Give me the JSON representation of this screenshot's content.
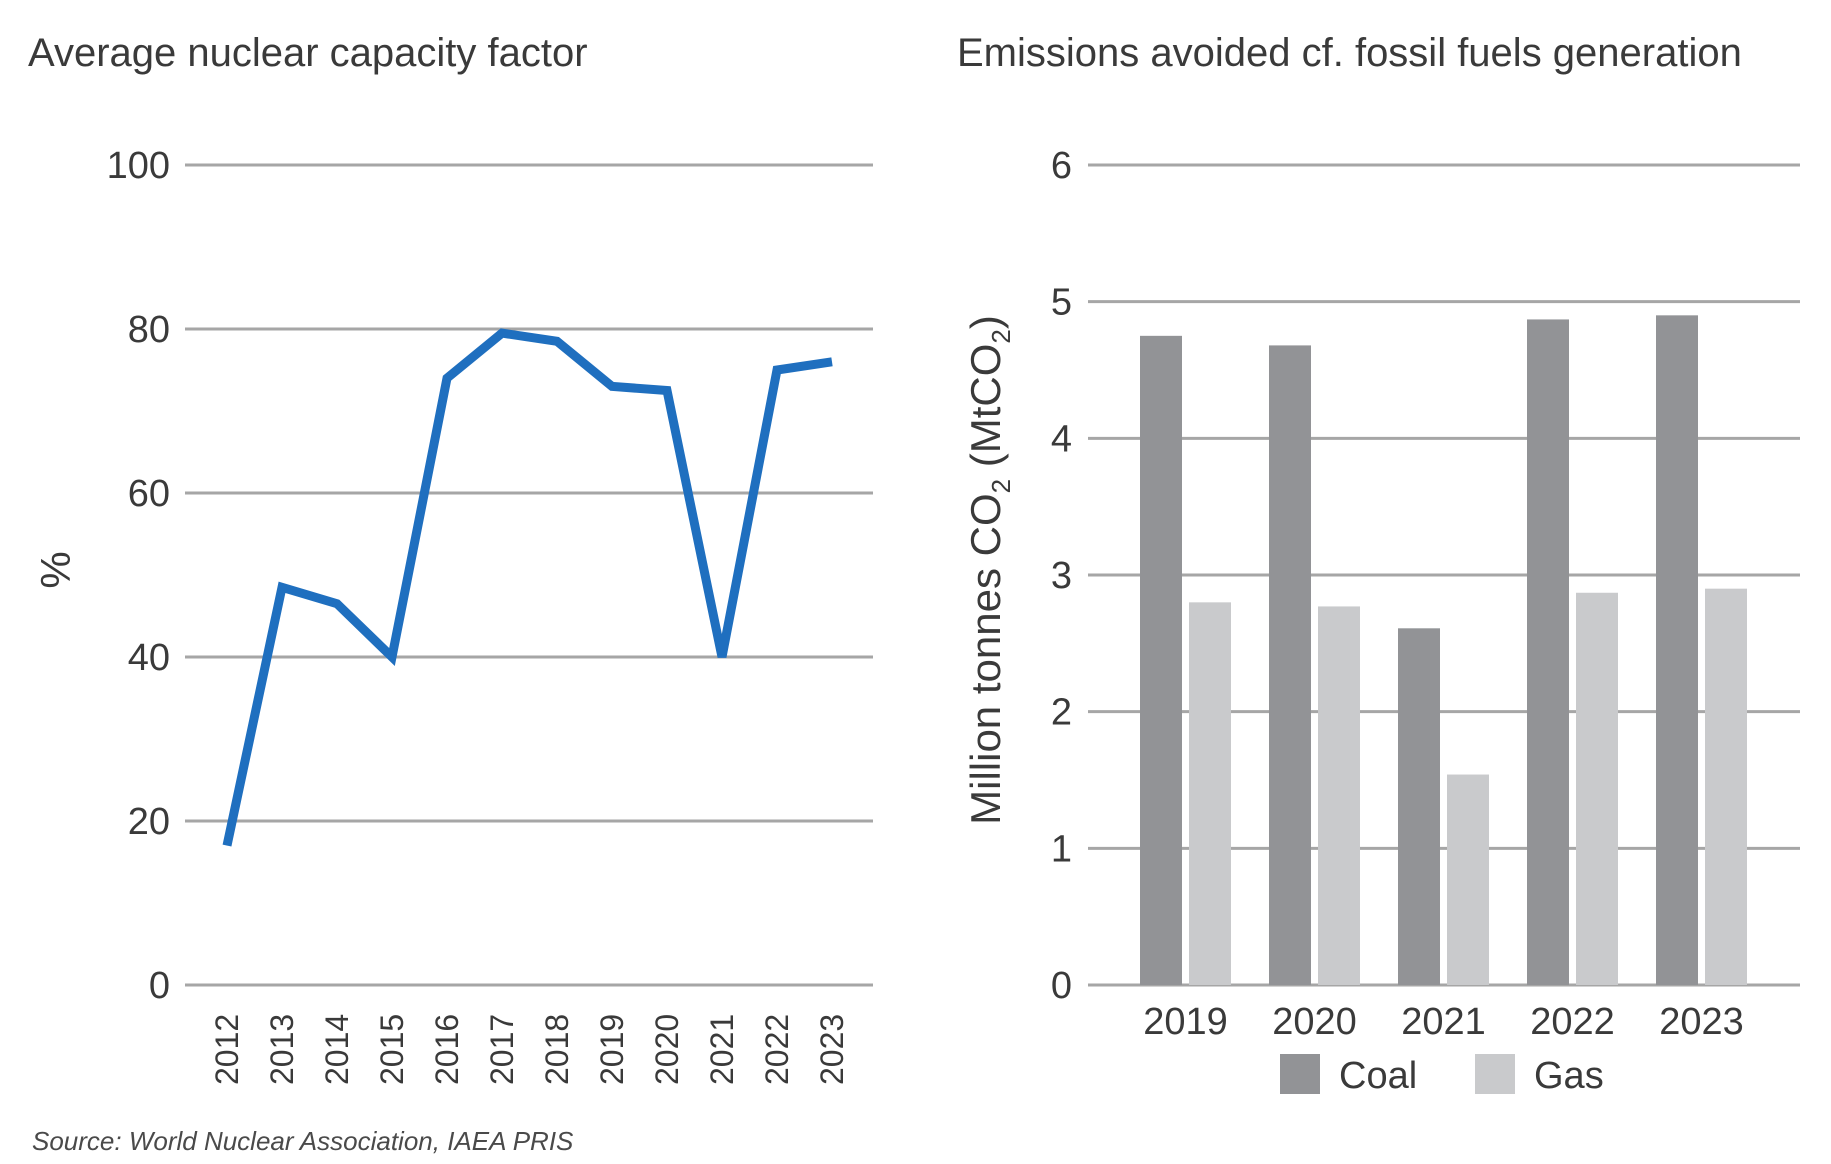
{
  "source": "Source: World Nuclear Association, IAEA PRIS",
  "colors": {
    "line": "#1f6fbf",
    "coal": "#929396",
    "gas": "#c9cacc",
    "grid": "#a6a6a6",
    "text": "#3a3a3a"
  },
  "chart_data": [
    {
      "type": "line",
      "title": "Average nuclear capacity factor",
      "ylabel": "%",
      "xlabel": "",
      "ylim": [
        0,
        100
      ],
      "yticks": [
        0,
        20,
        40,
        60,
        80,
        100
      ],
      "grid": true,
      "x": [
        "2012",
        "2013",
        "2014",
        "2015",
        "2016",
        "2017",
        "2018",
        "2019",
        "2020",
        "2021",
        "2022",
        "2023"
      ],
      "series": [
        {
          "values": [
            17,
            48.5,
            46.5,
            40,
            74,
            79.5,
            78.5,
            73,
            72.5,
            40,
            75,
            76
          ]
        }
      ]
    },
    {
      "type": "bar",
      "title": "Emissions avoided cf. fossil fuels generation",
      "ylabel_parts": [
        "Million tonnes CO",
        "2",
        " (MtCO",
        "2",
        ")"
      ],
      "xlabel": "",
      "ylim": [
        0,
        6
      ],
      "yticks": [
        0,
        1,
        2,
        3,
        4,
        5,
        6
      ],
      "grid": true,
      "legend": "bottom",
      "categories": [
        "2019",
        "2020",
        "2021",
        "2022",
        "2023"
      ],
      "series": [
        {
          "name": "Coal",
          "values": [
            4.75,
            4.68,
            2.61,
            4.87,
            4.9
          ]
        },
        {
          "name": "Gas",
          "values": [
            2.8,
            2.77,
            1.54,
            2.87,
            2.9
          ]
        }
      ]
    }
  ]
}
